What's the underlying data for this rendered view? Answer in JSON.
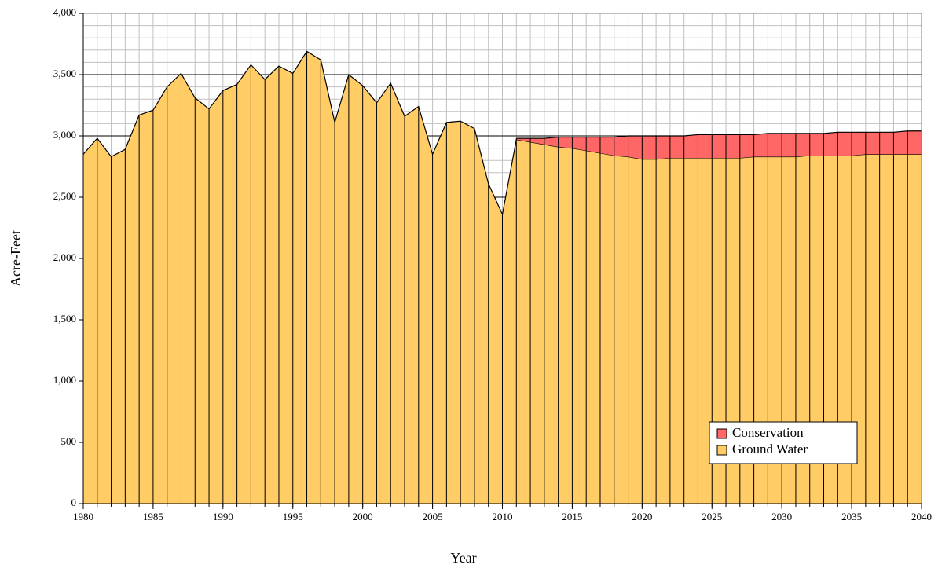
{
  "chart_data": {
    "type": "stacked_area",
    "x_label": "Year",
    "y_label": "Acre-Feet",
    "x": [
      1980,
      1981,
      1982,
      1983,
      1984,
      1985,
      1986,
      1987,
      1988,
      1989,
      1990,
      1991,
      1992,
      1993,
      1994,
      1995,
      1996,
      1997,
      1998,
      1999,
      2000,
      2001,
      2002,
      2003,
      2004,
      2005,
      2006,
      2007,
      2008,
      2009,
      2010,
      2011,
      2012,
      2013,
      2014,
      2015,
      2016,
      2017,
      2018,
      2019,
      2020,
      2021,
      2022,
      2023,
      2024,
      2025,
      2026,
      2027,
      2028,
      2029,
      2030,
      2031,
      2032,
      2033,
      2034,
      2035,
      2036,
      2037,
      2038,
      2039,
      2040
    ],
    "series": [
      {
        "name": "Ground Water",
        "color": "#ffcc66",
        "values": [
          2850,
          2980,
          2830,
          2890,
          3170,
          3210,
          3400,
          3510,
          3310,
          3220,
          3370,
          3420,
          3580,
          3460,
          3570,
          3510,
          3690,
          3620,
          3110,
          3500,
          3410,
          3270,
          3430,
          3160,
          3240,
          2850,
          3110,
          3120,
          3060,
          2610,
          2360,
          2970,
          2950,
          2930,
          2910,
          2900,
          2880,
          2860,
          2840,
          2830,
          2810,
          2810,
          2820,
          2820,
          2820,
          2820,
          2820,
          2820,
          2830,
          2830,
          2830,
          2830,
          2840,
          2840,
          2840,
          2840,
          2850,
          2850,
          2850,
          2850,
          2850
        ]
      },
      {
        "name": "Conservation",
        "color": "#ff6666",
        "values": [
          null,
          null,
          null,
          null,
          null,
          null,
          null,
          null,
          null,
          null,
          null,
          null,
          null,
          null,
          null,
          null,
          null,
          null,
          null,
          null,
          null,
          null,
          null,
          null,
          null,
          null,
          null,
          null,
          null,
          null,
          null,
          10,
          30,
          50,
          80,
          90,
          110,
          130,
          150,
          170,
          190,
          190,
          180,
          180,
          190,
          190,
          190,
          190,
          180,
          190,
          190,
          190,
          180,
          180,
          190,
          190,
          180,
          180,
          180,
          190,
          190
        ]
      }
    ],
    "xlim": [
      1980,
      2040
    ],
    "xticks": [
      1980,
      1985,
      1990,
      1995,
      2000,
      2005,
      2010,
      2015,
      2020,
      2025,
      2030,
      2035,
      2040
    ],
    "ylim": [
      0,
      4000
    ],
    "yticks": [
      0,
      500,
      {
        "value": 1000,
        "label": "1,000"
      },
      {
        "value": 1500,
        "label": "1,500"
      },
      {
        "value": 2000,
        "label": "2,000"
      },
      {
        "value": 2500,
        "label": "2,500"
      },
      {
        "value": 3000,
        "label": "3,000"
      },
      {
        "value": 3500,
        "label": "3,500"
      },
      {
        "value": 4000,
        "label": "4,000"
      }
    ],
    "grid": true,
    "legend": "lower right"
  }
}
